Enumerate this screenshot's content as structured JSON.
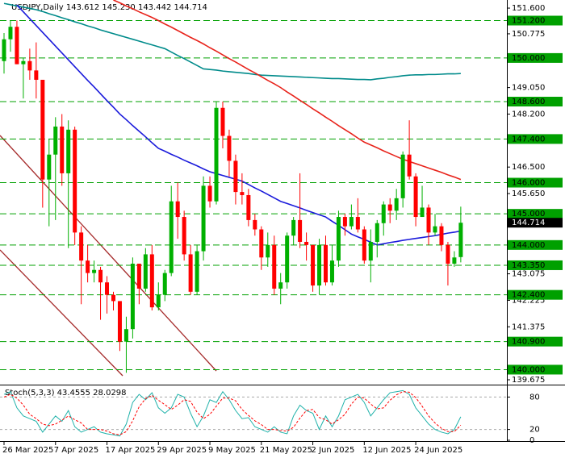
{
  "chart_data": {
    "type": "candlestick",
    "title": "USDJPY,Daily  143.612 145.230 143.442 144.714",
    "categories": [
      "26 Mar 2025",
      null,
      null,
      null,
      null,
      null,
      null,
      null,
      "7 Apr 2025",
      null,
      null,
      null,
      null,
      null,
      null,
      null,
      "17 Apr 2025",
      null,
      null,
      null,
      null,
      null,
      null,
      null,
      "29 Apr 2025",
      null,
      null,
      null,
      null,
      null,
      null,
      null,
      "9 May 2025",
      null,
      null,
      null,
      null,
      null,
      null,
      null,
      "21 May 2025",
      null,
      null,
      null,
      null,
      null,
      null,
      null,
      "2 Jun 2025",
      null,
      null,
      null,
      null,
      null,
      null,
      null,
      "12 Jun 2025",
      null,
      null,
      null,
      null,
      null,
      null,
      null,
      "24 Jun 2025",
      null,
      null,
      null,
      null,
      null,
      null,
      null
    ],
    "open": [
      149.9,
      150.6,
      151.0,
      149.8,
      149.9,
      149.6,
      149.3,
      146.1,
      146.9,
      147.8,
      146.3,
      147.7,
      144.4,
      143.5,
      143.1,
      143.2,
      142.8,
      142.4,
      142.2,
      140.9,
      141.3,
      143.4,
      142.6,
      143.7,
      142.0,
      142.4,
      143.1,
      145.4,
      144.9,
      143.7,
      142.5,
      143.8,
      145.9,
      145.4,
      148.4,
      147.5,
      146.7,
      145.7,
      145.6,
      144.8,
      144.5,
      143.6,
      144.0,
      142.6,
      142.8,
      144.3,
      144.8,
      144.1,
      144.0,
      142.7,
      144.0,
      142.8,
      143.5,
      144.9,
      144.6,
      144.9,
      144.5,
      143.5,
      144.1,
      144.7,
      145.3,
      145.1,
      145.5,
      146.9,
      146.2,
      144.9,
      145.2,
      144.4,
      144.6,
      144.0,
      143.4,
      143.612
    ],
    "high": [
      150.8,
      151.2,
      151.2,
      150.0,
      150.3,
      150.5,
      149.3,
      147.4,
      148.1,
      148.2,
      148.0,
      147.8,
      144.6,
      144.0,
      143.5,
      143.3,
      143.0,
      142.5,
      142.2,
      141.7,
      143.6,
      143.4,
      143.9,
      144.0,
      142.8,
      143.2,
      145.9,
      146.0,
      145.1,
      144.0,
      144.0,
      146.2,
      146.2,
      148.6,
      148.6,
      147.7,
      146.9,
      146.3,
      145.8,
      145.0,
      144.6,
      144.4,
      144.3,
      143.1,
      144.4,
      144.9,
      146.3,
      144.4,
      144.0,
      144.2,
      144.3,
      144.0,
      145.1,
      145.0,
      145.3,
      145.5,
      144.6,
      144.5,
      144.8,
      145.4,
      145.5,
      145.8,
      147.0,
      148.0,
      146.3,
      145.9,
      145.3,
      145.0,
      144.7,
      144.1,
      143.8,
      145.23
    ],
    "low": [
      149.5,
      150.2,
      149.8,
      148.7,
      149.3,
      148.7,
      145.2,
      144.6,
      144.8,
      145.9,
      143.9,
      144.0,
      142.1,
      142.8,
      142.8,
      141.6,
      141.8,
      141.9,
      140.6,
      139.9,
      141.0,
      142.1,
      142.5,
      141.9,
      141.9,
      142.2,
      143.0,
      144.2,
      143.5,
      142.4,
      142.4,
      143.5,
      145.2,
      145.3,
      147.1,
      146.2,
      145.3,
      145.3,
      144.6,
      144.3,
      143.2,
      143.3,
      142.4,
      142.1,
      142.6,
      144.0,
      143.9,
      143.5,
      142.5,
      142.4,
      142.7,
      142.7,
      143.3,
      144.3,
      144.5,
      144.4,
      143.4,
      142.8,
      143.6,
      144.3,
      144.7,
      144.8,
      145.2,
      146.1,
      144.6,
      144.9,
      144.0,
      144.3,
      143.8,
      142.7,
      143.3,
      143.442
    ],
    "close": [
      150.6,
      151.0,
      149.8,
      149.9,
      149.6,
      149.3,
      146.1,
      146.9,
      147.8,
      146.3,
      147.7,
      144.4,
      143.5,
      143.1,
      143.2,
      142.8,
      142.4,
      142.2,
      140.9,
      141.3,
      143.4,
      142.6,
      143.7,
      142.0,
      142.4,
      143.1,
      145.4,
      144.9,
      143.7,
      142.5,
      143.8,
      145.9,
      145.4,
      148.4,
      147.5,
      146.7,
      145.7,
      145.6,
      144.8,
      144.5,
      143.6,
      144.0,
      142.6,
      142.8,
      144.3,
      144.8,
      144.1,
      144.0,
      142.7,
      144.0,
      142.8,
      143.5,
      144.9,
      144.6,
      144.9,
      144.5,
      143.5,
      144.1,
      144.7,
      145.3,
      145.1,
      145.5,
      146.9,
      146.2,
      144.9,
      145.2,
      144.4,
      144.6,
      144.0,
      143.4,
      143.6,
      144.714
    ],
    "bull_color": "#00b000",
    "bear_color": "#ff0000",
    "moving_averages": [
      {
        "color": "#008b8b",
        "values": [
          151.75,
          151.71,
          151.67,
          151.63,
          151.59,
          151.55,
          151.49,
          151.42,
          151.36,
          151.29,
          151.23,
          151.16,
          151.1,
          151.03,
          150.97,
          150.9,
          150.84,
          150.78,
          150.72,
          150.66,
          150.6,
          150.54,
          150.48,
          150.42,
          150.36,
          150.3,
          150.19,
          150.08,
          149.98,
          149.87,
          149.76,
          149.65,
          149.63,
          149.61,
          149.58,
          149.56,
          149.54,
          149.52,
          149.5,
          149.47,
          149.45,
          149.44,
          149.43,
          149.42,
          149.41,
          149.4,
          149.39,
          149.38,
          149.37,
          149.36,
          149.35,
          149.34,
          149.34,
          149.33,
          149.32,
          149.31,
          149.31,
          149.3,
          149.33,
          149.35,
          149.38,
          149.4,
          149.43,
          149.45,
          149.46,
          149.46,
          149.47,
          149.47,
          149.48,
          149.49,
          149.49,
          149.5
        ]
      },
      {
        "color": "#e8231b",
        "values": [
          null,
          null,
          null,
          null,
          null,
          null,
          null,
          null,
          null,
          null,
          null,
          null,
          null,
          null,
          null,
          null,
          null,
          151.86,
          151.77,
          151.67,
          151.58,
          151.48,
          151.39,
          151.3,
          151.2,
          151.09,
          150.99,
          150.88,
          150.77,
          150.66,
          150.56,
          150.45,
          150.33,
          150.22,
          150.1,
          149.98,
          149.87,
          149.75,
          149.63,
          149.52,
          149.4,
          149.28,
          149.17,
          149.05,
          148.91,
          148.78,
          148.64,
          148.51,
          148.37,
          148.24,
          148.1,
          147.97,
          147.83,
          147.7,
          147.57,
          147.43,
          147.3,
          147.21,
          147.12,
          147.02,
          146.93,
          146.84,
          146.75,
          146.68,
          146.61,
          146.54,
          146.47,
          146.4,
          146.33,
          146.25,
          146.18,
          146.1
        ]
      },
      {
        "color": "#1a1adb",
        "values": [
          null,
          null,
          151.7,
          151.48,
          151.26,
          151.04,
          150.82,
          150.6,
          150.38,
          150.16,
          149.94,
          149.72,
          149.5,
          149.28,
          149.07,
          148.85,
          148.63,
          148.42,
          148.2,
          148.02,
          147.83,
          147.65,
          147.47,
          147.28,
          147.1,
          147.01,
          146.91,
          146.82,
          146.72,
          146.63,
          146.54,
          146.44,
          146.35,
          146.29,
          146.23,
          146.17,
          146.11,
          146.05,
          145.94,
          145.83,
          145.73,
          145.62,
          145.51,
          145.4,
          145.33,
          145.26,
          145.19,
          145.11,
          145.04,
          144.97,
          144.9,
          144.76,
          144.63,
          144.49,
          144.35,
          144.26,
          144.18,
          144.09,
          144.0,
          144.04,
          144.08,
          144.11,
          144.15,
          144.18,
          144.21,
          144.24,
          144.27,
          144.3,
          144.34,
          144.38,
          144.41,
          144.45
        ]
      }
    ],
    "ylim": [
      139.52,
      151.86
    ],
    "yticks": [
      {
        "value": 151.6,
        "label": "151.600"
      },
      {
        "value": 150.775,
        "label": "150.775"
      },
      {
        "value": 149.05,
        "label": "149.050"
      },
      {
        "value": 148.2,
        "label": "148.200"
      },
      {
        "value": 146.5,
        "label": "146.500"
      },
      {
        "value": 145.65,
        "label": "145.650"
      },
      {
        "value": 143.075,
        "label": "143.075"
      },
      {
        "value": 142.225,
        "label": "142.225"
      },
      {
        "value": 141.375,
        "label": "141.375"
      },
      {
        "value": 139.675,
        "label": "139.675"
      }
    ],
    "level_color": "#00a000",
    "levels": [
      {
        "value": 151.2,
        "label": "151.200"
      },
      {
        "value": 150.0,
        "label": "150.000"
      },
      {
        "value": 148.6,
        "label": "148.600"
      },
      {
        "value": 147.4,
        "label": "147.400"
      },
      {
        "value": 146.0,
        "label": "146.000"
      },
      {
        "value": 145.0,
        "label": "145.000"
      },
      {
        "value": 144.0,
        "label": "144.000"
      },
      {
        "value": 143.35,
        "label": "143.350"
      },
      {
        "value": 142.4,
        "label": "142.400"
      },
      {
        "value": 140.9,
        "label": "140.900"
      },
      {
        "value": 140.0,
        "label": "140.000"
      }
    ],
    "stochastic": {
      "title": "Stoch(5,3,3) 43.4555 28.0298",
      "ylim": [
        0,
        100
      ],
      "yticks": [
        80,
        20,
        0
      ],
      "levels": [
        80,
        20
      ],
      "main": {
        "color": "#20b2aa",
        "values": [
          85,
          90,
          60,
          45,
          40,
          35,
          15,
          30,
          45,
          35,
          55,
          25,
          15,
          20,
          25,
          15,
          12,
          10,
          8,
          30,
          70,
          85,
          75,
          88,
          60,
          50,
          60,
          85,
          80,
          50,
          25,
          45,
          75,
          70,
          90,
          75,
          55,
          40,
          42,
          25,
          20,
          15,
          25,
          15,
          12,
          45,
          65,
          55,
          50,
          20,
          45,
          25,
          45,
          75,
          80,
          85,
          70,
          45,
          60,
          75,
          88,
          90,
          92,
          85,
          60,
          45,
          30,
          20,
          15,
          12,
          20,
          43.4555
        ]
      },
      "signal": {
        "color": "#ff0000",
        "values": [
          80,
          85,
          78,
          65,
          48,
          40,
          30,
          27,
          30,
          37,
          45,
          38,
          32,
          20,
          20,
          20,
          17,
          12,
          10,
          16,
          36,
          62,
          77,
          83,
          74,
          66,
          57,
          65,
          75,
          72,
          52,
          40,
          48,
          63,
          78,
          78,
          73,
          57,
          46,
          36,
          29,
          20,
          20,
          18,
          17,
          24,
          41,
          55,
          57,
          42,
          38,
          30,
          38,
          48,
          67,
          80,
          78,
          67,
          58,
          60,
          74,
          84,
          90,
          89,
          79,
          63,
          45,
          32,
          22,
          16,
          16,
          28.0298
        ]
      }
    }
  }
}
